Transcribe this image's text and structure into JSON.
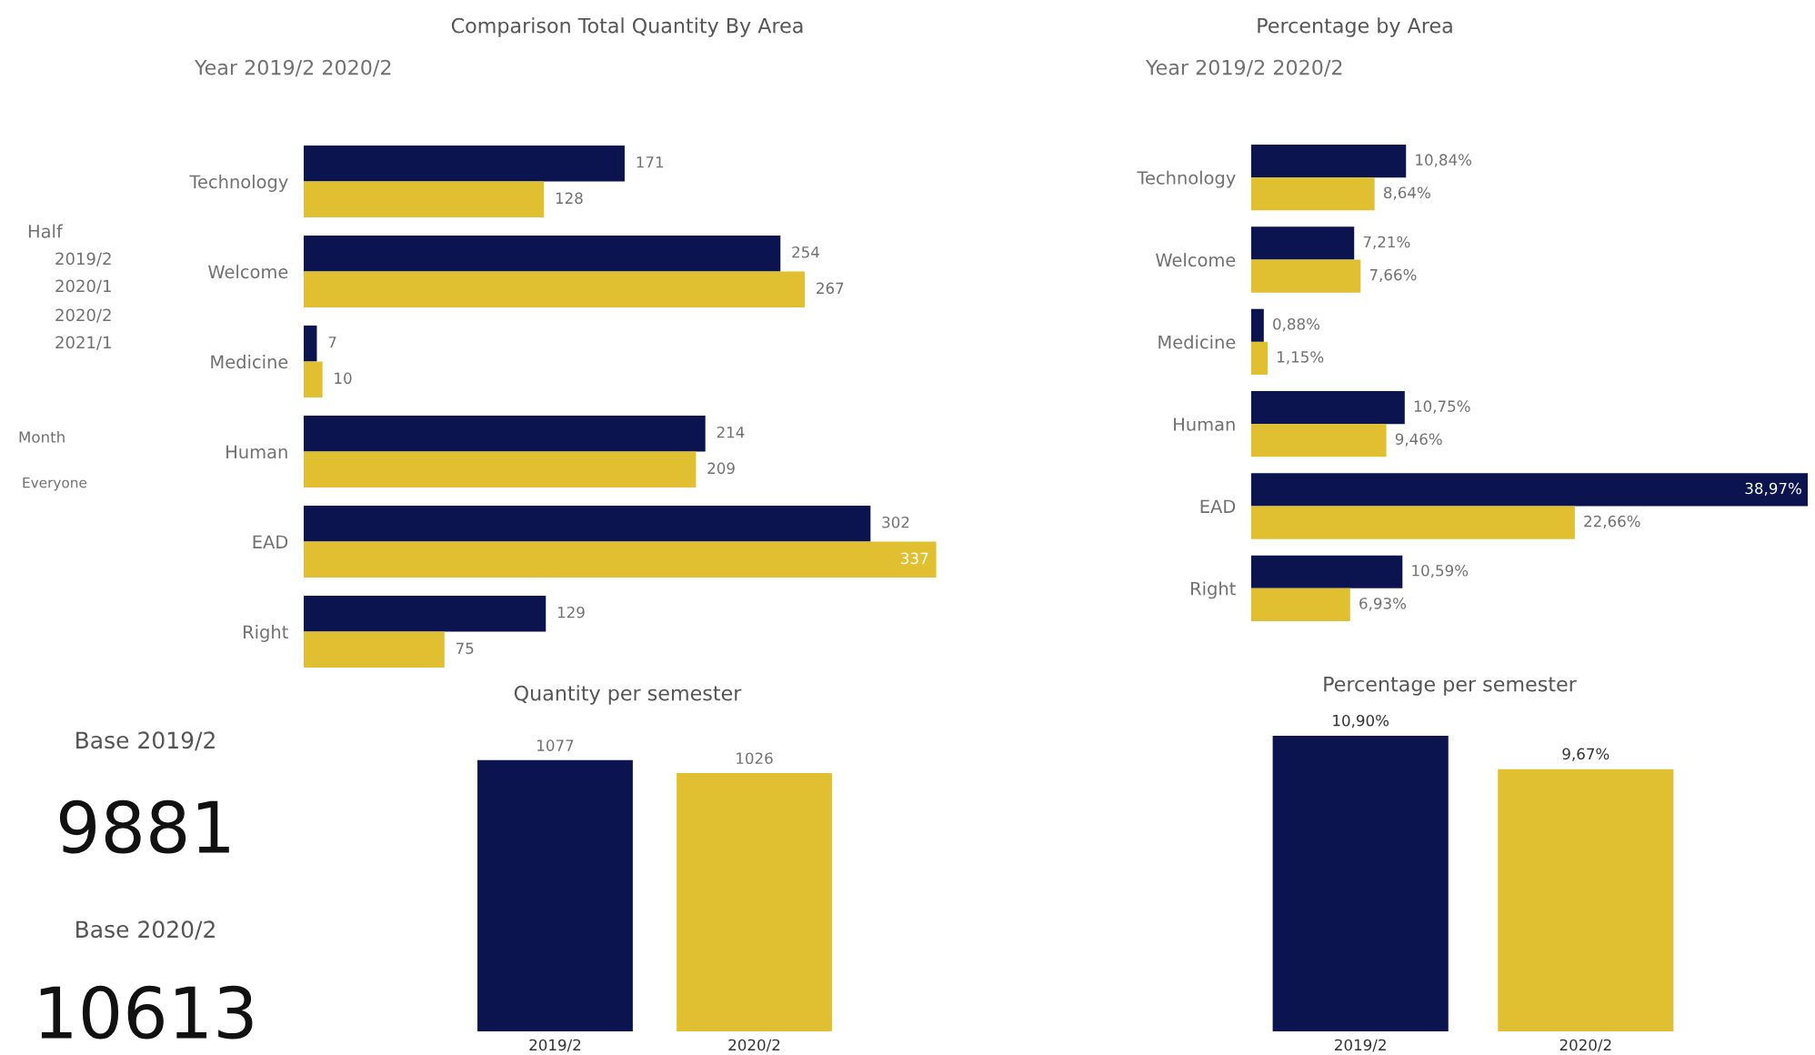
{
  "chart_data": [
    {
      "type": "bar",
      "orientation": "horizontal",
      "title": "Comparison Total Quantity By Area",
      "subtitle": "Year 2019/2 2020/2",
      "categories": [
        "Technology",
        "Welcome",
        "Medicine",
        "Human",
        "EAD",
        "Right"
      ],
      "data_labels": true,
      "series": [
        {
          "color": "#0c1450",
          "values": [
            171,
            254,
            7,
            214,
            302,
            129
          ]
        },
        {
          "color": "#e0c030",
          "values": [
            128,
            267,
            10,
            209,
            337,
            75
          ]
        }
      ]
    },
    {
      "type": "bar",
      "orientation": "horizontal",
      "title": "Percentage by Area",
      "subtitle": "Year 2019/2 2020/2",
      "categories": [
        "Technology",
        "Welcome",
        "Medicine",
        "Human",
        "EAD",
        "Right"
      ],
      "series": [
        {
          "color": "#0c1450",
          "values": [
            10.84,
            7.21,
            0.88,
            10.75,
            38.97,
            10.59
          ],
          "value_labels": [
            "10,84%",
            "7,21%",
            "0,88%",
            "10,75%",
            "38,97%",
            "10,59%"
          ]
        },
        {
          "color": "#e0c030",
          "values": [
            8.64,
            7.66,
            1.15,
            9.46,
            22.66,
            6.93
          ],
          "value_labels": [
            "8,64%",
            "7,66%",
            "1,15%",
            "9,46%",
            "22,66%",
            "6,93%"
          ]
        }
      ]
    },
    {
      "type": "other",
      "annotations": [
        "Half",
        "2019/2",
        "2020/1",
        "2020/2",
        "2021/1",
        "Month",
        "Everyone",
        "Base 2019/2",
        "9881",
        "Base 2020/2",
        "10613"
      ]
    },
    {
      "type": "bar",
      "title": "Quantity per semester",
      "categories": [
        "2019/2",
        "2020/2"
      ],
      "values": [
        1077,
        1026
      ],
      "colors": [
        "#0c1450",
        "#e0c030"
      ],
      "data_labels": true
    },
    {
      "type": "bar",
      "title": "Percentage per semester",
      "categories": [
        "2019/2",
        "2020/2"
      ],
      "values": [
        10.9,
        9.67
      ],
      "value_labels": [
        "10,90%",
        "9,67%"
      ],
      "colors": [
        "#0c1450",
        "#e0c030"
      ]
    }
  ]
}
